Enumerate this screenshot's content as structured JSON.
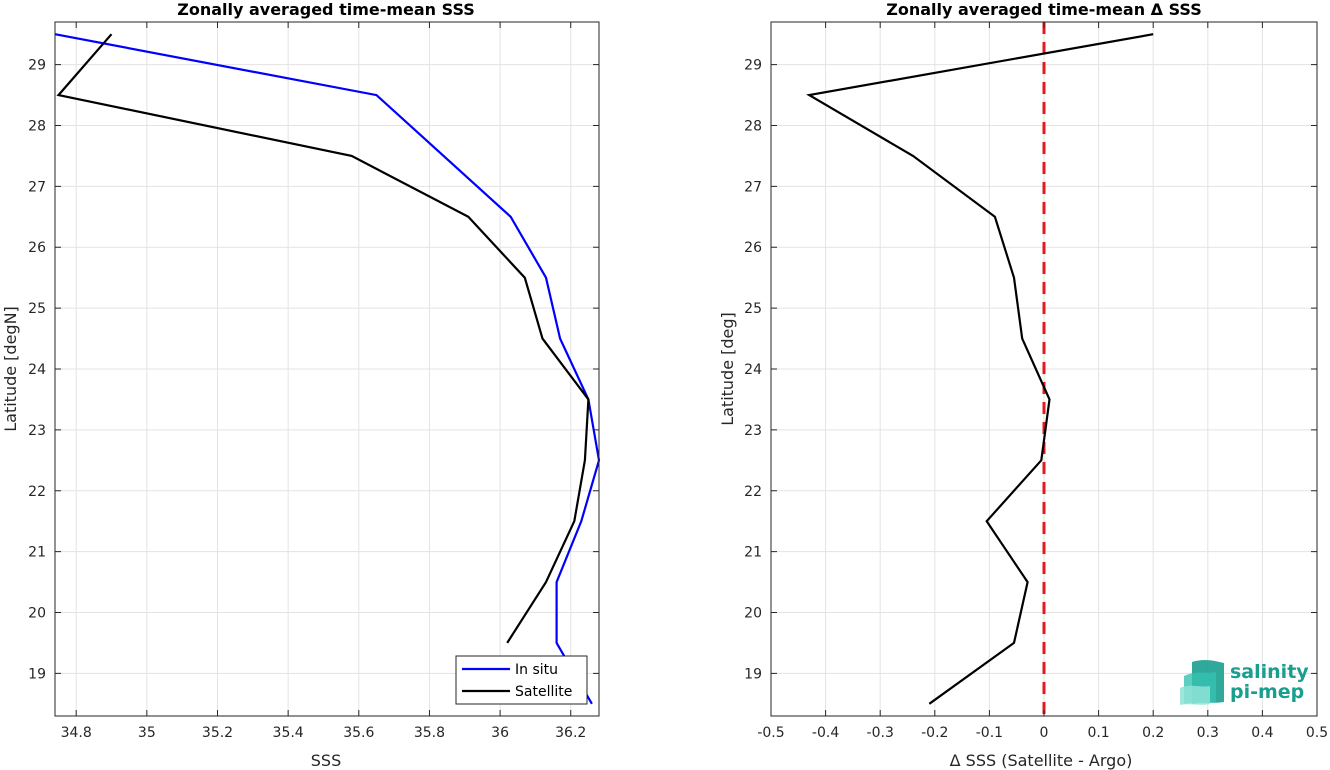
{
  "chart_data": [
    {
      "type": "line",
      "title": "Zonally averaged time-mean SSS",
      "xlabel": "SSS",
      "ylabel": "Latitude [degN]",
      "xlim": [
        34.74,
        36.28
      ],
      "ylim": [
        18.3,
        29.7
      ],
      "xticks": [
        34.8,
        35,
        35.2,
        35.4,
        35.6,
        35.8,
        36,
        36.2
      ],
      "xtick_labels": [
        "34.8",
        "35",
        "35.2",
        "35.4",
        "35.6",
        "35.8",
        "36",
        "36.2"
      ],
      "yticks": [
        19,
        20,
        21,
        22,
        23,
        24,
        25,
        26,
        27,
        28,
        29
      ],
      "ytick_labels": [
        "19",
        "20",
        "21",
        "22",
        "23",
        "24",
        "25",
        "26",
        "27",
        "28",
        "29"
      ],
      "grid": true,
      "legend_position": "bottom-right",
      "series": [
        {
          "name": "In situ",
          "color": "#0000ff",
          "x": [
            34.74,
            35.65,
            36.03,
            36.13,
            36.17,
            36.25,
            36.28,
            36.23,
            36.16,
            36.16,
            36.16,
            36.26
          ],
          "y": [
            29.5,
            28.5,
            26.5,
            25.5,
            24.5,
            23.5,
            22.5,
            21.5,
            20.5,
            20.5,
            19.5,
            18.5
          ]
        },
        {
          "name": "Satellite",
          "color": "#000000",
          "x": [
            34.9,
            34.75,
            35.58,
            35.91,
            36.07,
            36.12,
            36.25,
            36.24,
            36.21,
            36.13,
            36.02
          ],
          "y": [
            29.5,
            28.5,
            27.5,
            26.5,
            25.5,
            24.5,
            23.5,
            22.5,
            21.5,
            20.5,
            19.5
          ]
        }
      ]
    },
    {
      "type": "line",
      "title": "Zonally averaged time-mean Δ SSS",
      "xlabel": "Δ SSS (Satellite - Argo)",
      "ylabel": "Latitude [deg]",
      "xlim": [
        -0.5,
        0.5
      ],
      "ylim": [
        18.3,
        29.7
      ],
      "xticks": [
        -0.5,
        -0.4,
        -0.3,
        -0.2,
        -0.1,
        0,
        0.1,
        0.2,
        0.3,
        0.4,
        0.5
      ],
      "xtick_labels": [
        "-0.5",
        "-0.4",
        "-0.3",
        "-0.2",
        "-0.1",
        "0",
        "0.1",
        "0.2",
        "0.3",
        "0.4",
        "0.5"
      ],
      "yticks": [
        19,
        20,
        21,
        22,
        23,
        24,
        25,
        26,
        27,
        28,
        29
      ],
      "ytick_labels": [
        "19",
        "20",
        "21",
        "22",
        "23",
        "24",
        "25",
        "26",
        "27",
        "28",
        "29"
      ],
      "grid": true,
      "reference_line": {
        "x": 0,
        "color": "#e41a1c",
        "style": "dashed"
      },
      "series": [
        {
          "color": "#000000",
          "x": [
            0.2,
            -0.43,
            -0.24,
            -0.09,
            -0.055,
            -0.04,
            0.01,
            -0.005,
            -0.105,
            -0.03,
            -0.055,
            -0.21
          ],
          "y": [
            29.5,
            28.5,
            27.5,
            26.5,
            25.5,
            24.5,
            23.5,
            22.5,
            21.5,
            20.5,
            19.5,
            18.5
          ]
        }
      ]
    }
  ],
  "logo": {
    "line1": "salinity",
    "line2": "pi-mep",
    "color": "#1a9e8f"
  }
}
